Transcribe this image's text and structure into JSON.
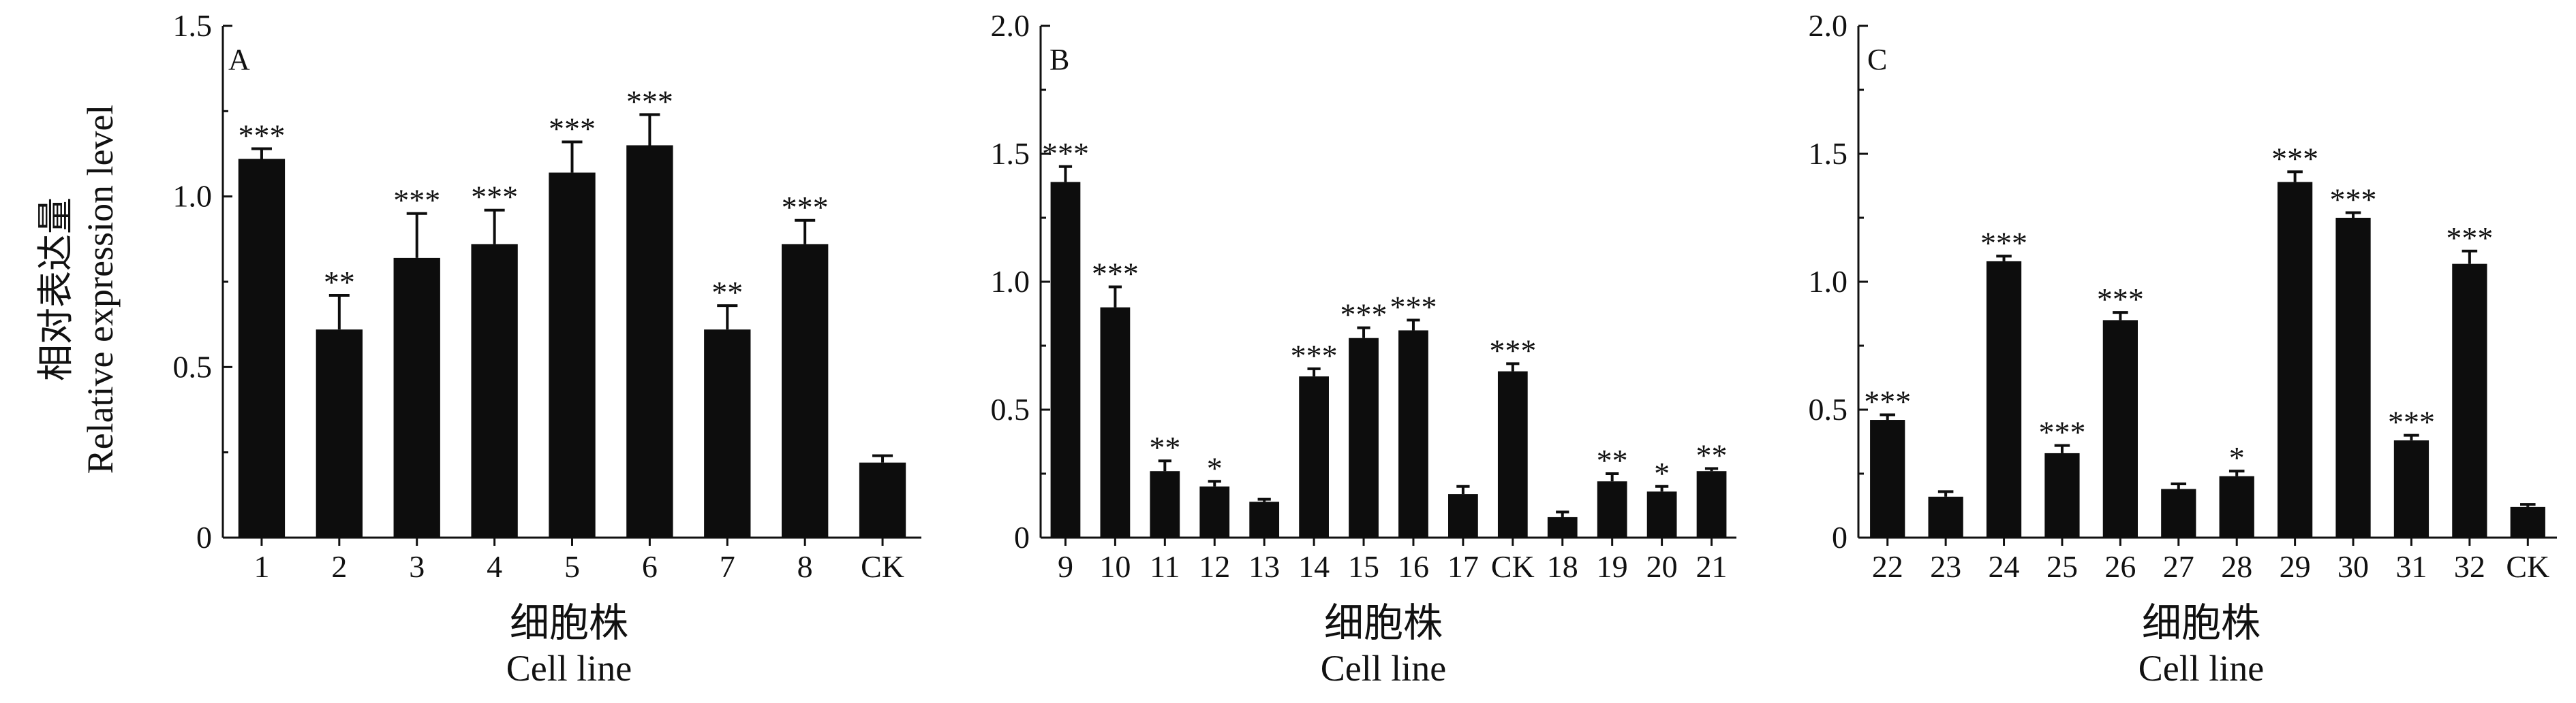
{
  "chart_data": [
    {
      "type": "bar",
      "panel": "A",
      "ylabel_cn": "相对表达量",
      "ylabel_en": "Relative expression level",
      "xlabel_cn": "细胞株",
      "xlabel_en": "Cell line",
      "ylim": [
        0,
        1.5
      ],
      "yticks": [
        "0",
        "0.5",
        "1.0",
        "1.5"
      ],
      "categories": [
        "1",
        "2",
        "3",
        "4",
        "5",
        "6",
        "7",
        "8",
        "CK"
      ],
      "values": [
        1.11,
        0.61,
        0.82,
        0.86,
        1.07,
        1.15,
        0.61,
        0.86,
        0.22
      ],
      "errors": [
        0.03,
        0.1,
        0.13,
        0.1,
        0.09,
        0.09,
        0.07,
        0.07,
        0.02
      ],
      "significance": [
        "***",
        "**",
        "***",
        "***",
        "***",
        "***",
        "**",
        "***",
        ""
      ]
    },
    {
      "type": "bar",
      "panel": "B",
      "xlabel_cn": "细胞株",
      "xlabel_en": "Cell line",
      "ylim": [
        0,
        2.0
      ],
      "yticks": [
        "0",
        "0.5",
        "1.0",
        "1.5",
        "2.0"
      ],
      "categories": [
        "9",
        "10",
        "11",
        "12",
        "13",
        "14",
        "15",
        "16",
        "17",
        "CK",
        "18",
        "19",
        "20",
        "21"
      ],
      "values": [
        1.39,
        0.9,
        0.26,
        0.2,
        0.14,
        0.63,
        0.78,
        0.81,
        0.17,
        0.65,
        0.08,
        0.22,
        0.18,
        0.26
      ],
      "errors": [
        0.06,
        0.08,
        0.04,
        0.02,
        0.01,
        0.03,
        0.04,
        0.04,
        0.03,
        0.03,
        0.02,
        0.03,
        0.02,
        0.01
      ],
      "significance": [
        "***",
        "***",
        "**",
        "*",
        "",
        "***",
        "***",
        "***",
        "",
        "***",
        "",
        "**",
        "*",
        "**"
      ]
    },
    {
      "type": "bar",
      "panel": "C",
      "xlabel_cn": "细胞株",
      "xlabel_en": "Cell line",
      "ylim": [
        0,
        2.0
      ],
      "yticks": [
        "0",
        "0.5",
        "1.0",
        "1.5",
        "2.0"
      ],
      "categories": [
        "22",
        "23",
        "24",
        "25",
        "26",
        "27",
        "28",
        "29",
        "30",
        "31",
        "32",
        "CK"
      ],
      "values": [
        0.46,
        0.16,
        1.08,
        0.33,
        0.85,
        0.19,
        0.24,
        1.39,
        1.25,
        0.38,
        1.07,
        0.12
      ],
      "errors": [
        0.02,
        0.02,
        0.02,
        0.03,
        0.03,
        0.02,
        0.02,
        0.04,
        0.02,
        0.02,
        0.05,
        0.01
      ],
      "significance": [
        "***",
        "",
        "***",
        "***",
        "***",
        "",
        "*",
        "***",
        "***",
        "***",
        "***",
        ""
      ]
    }
  ]
}
